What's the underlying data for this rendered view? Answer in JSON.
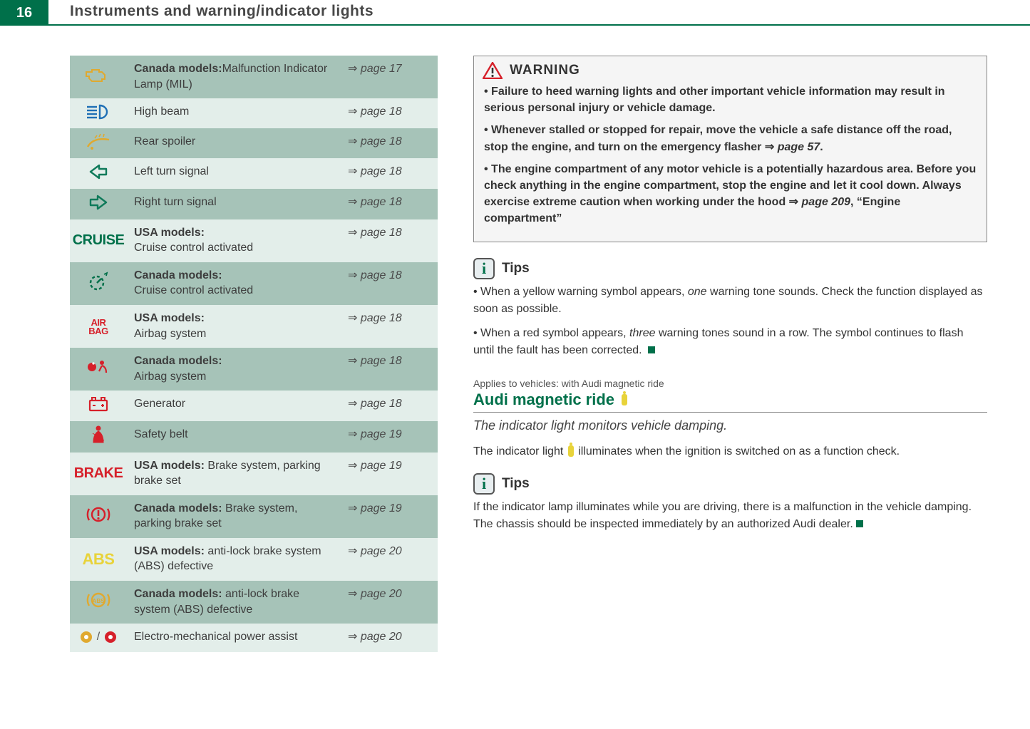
{
  "header": {
    "page_number": "16",
    "title": "Instruments and warning/indicator lights"
  },
  "table": {
    "row_colors": {
      "dark": "#a6c3b8",
      "light": "#e3eeea"
    },
    "rows": [
      {
        "shade": "dark",
        "icon": "engine",
        "desc_bold": "Canada models:",
        "desc": "Malfunction Indicator Lamp (MIL)",
        "page": "page 17"
      },
      {
        "shade": "light",
        "icon": "highbeam",
        "desc_bold": "",
        "desc": "High beam",
        "page": "page 18"
      },
      {
        "shade": "dark",
        "icon": "spoiler",
        "desc_bold": "",
        "desc": "Rear spoiler",
        "page": "page 18"
      },
      {
        "shade": "light",
        "icon": "left",
        "desc_bold": "",
        "desc": "Left turn signal",
        "page": "page 18"
      },
      {
        "shade": "dark",
        "icon": "right",
        "desc_bold": "",
        "desc": "Right turn signal",
        "page": "page 18"
      },
      {
        "shade": "light",
        "icon": "cruise-us",
        "desc_bold": "USA models:",
        "desc": "Cruise control activated",
        "page": "page 18"
      },
      {
        "shade": "dark",
        "icon": "cruise-ca",
        "desc_bold": "Canada models:",
        "desc": "Cruise control activated",
        "page": "page 18"
      },
      {
        "shade": "light",
        "icon": "airbag-us",
        "desc_bold": "USA models:",
        "desc": "Airbag system",
        "page": "page 18"
      },
      {
        "shade": "dark",
        "icon": "airbag-ca",
        "desc_bold": "Canada models:",
        "desc": "Airbag system",
        "page": "page 18"
      },
      {
        "shade": "light",
        "icon": "generator",
        "desc_bold": "",
        "desc": "Generator",
        "page": "page 18"
      },
      {
        "shade": "dark",
        "icon": "belt",
        "desc_bold": "",
        "desc": "Safety belt",
        "page": "page 19"
      },
      {
        "shade": "light",
        "icon": "brake-us",
        "desc_bold": "USA models: ",
        "desc": "Brake system, parking brake set",
        "page": "page 19"
      },
      {
        "shade": "dark",
        "icon": "brake-ca",
        "desc_bold": "Canada models: ",
        "desc": "Brake system, parking brake set",
        "page": "page 19"
      },
      {
        "shade": "light",
        "icon": "abs-us",
        "desc_bold": "USA models: ",
        "desc": "anti-lock brake system (ABS) defective",
        "page": "page 20"
      },
      {
        "shade": "dark",
        "icon": "abs-ca",
        "desc_bold": "Canada models: ",
        "desc": "anti-lock brake system (ABS) defective",
        "page": "page 20"
      },
      {
        "shade": "light",
        "icon": "power-assist",
        "desc_bold": "",
        "desc": "Electro-mechanical power assist",
        "page": "page 20"
      }
    ]
  },
  "warning": {
    "title": "WARNING",
    "bullets": [
      "Failure to heed warning lights and other important vehicle information may result in serious personal injury or vehicle damage.",
      "Whenever stalled or stopped for repair, move the vehicle a safe distance off the road, stop the engine, and turn on the emergency flasher ⇒ <i>page 57</i>.",
      "The engine compartment of any motor vehicle is a potentially hazardous area. Before you check anything in the engine compartment, stop the engine and let it cool down. Always exercise extreme caution when working under the hood ⇒ <i>page 209</i>, “Engine compartment”"
    ]
  },
  "tips1": {
    "title": "Tips",
    "bullets": [
      "When a yellow warning symbol appears, <i>one</i> warning tone sounds. Check the function displayed as soon as possible.",
      "When a red symbol appears, <i>three</i> warning tones sound in a row. The symbol continues to flash until the fault has been corrected."
    ]
  },
  "section": {
    "applies": "Applies to vehicles: with Audi magnetic ride",
    "title": "Audi magnetic ride",
    "intro": "The indicator light monitors vehicle damping.",
    "body": "The indicator light   illuminates when the ignition is switched on as a function check."
  },
  "tips2": {
    "title": "Tips",
    "body": "If the indicator lamp illuminates while you are driving, there is a malfunction in the vehicle damping. The chassis should be inspected immediately by an authorized Audi dealer."
  },
  "colors": {
    "brand_green": "#00704a",
    "warning_red": "#d6202a",
    "amber": "#e0a92f",
    "yellow": "#e8d33a",
    "blue": "#1e6fb5",
    "teal_outline": "#0f7a5a"
  },
  "icons": {
    "cruise_us_text": "CRUISE",
    "airbag_us_text_top": "AIR",
    "airbag_us_text_bot": "BAG",
    "brake_us_text": "BRAKE",
    "abs_us_text": "ABS"
  }
}
